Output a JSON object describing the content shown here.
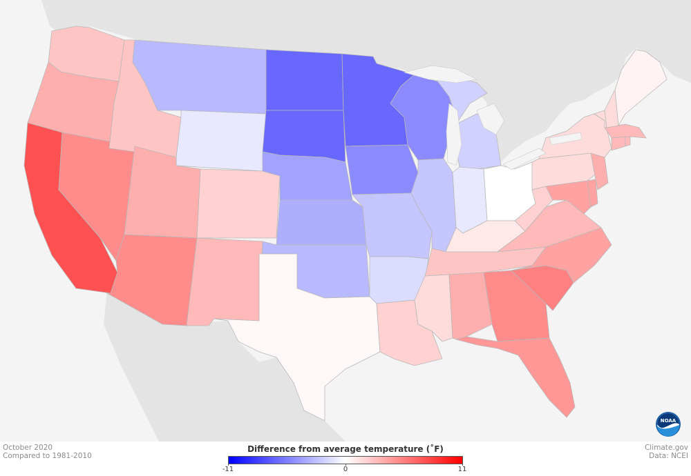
{
  "map": {
    "date_label": "October 2020",
    "baseline_label": "Compared to 1981-2010",
    "credit_source": "Climate.gov",
    "credit_data": "Data: NCEI",
    "logo_text": "NOAA",
    "colors": {
      "background": "#f4f4f4",
      "neighbor_land": "#e4e4e4",
      "cold": "#0000ff",
      "neutral": "#ffffff",
      "warm": "#ff0000"
    }
  },
  "legend": {
    "title": "Difference from average temperature (˚F)",
    "min_label": "-11",
    "mid_label": "0",
    "max_label": "11",
    "min": -11,
    "max": 11
  },
  "chart_data": {
    "type": "heatmap",
    "title": "Difference from average temperature (˚F)",
    "subtitle": "October 2020, compared to 1981-2010",
    "scale": {
      "min": -11,
      "max": 11,
      "colors": [
        "#0000ff",
        "#ffffff",
        "#ff0000"
      ]
    },
    "regions": [
      {
        "name": "WA",
        "anomaly": 2.5
      },
      {
        "name": "OR",
        "anomaly": 3.5
      },
      {
        "name": "CA",
        "anomaly": 7.5
      },
      {
        "name": "NV",
        "anomaly": 5
      },
      {
        "name": "ID",
        "anomaly": 2.5
      },
      {
        "name": "MT",
        "anomaly": -3
      },
      {
        "name": "WY",
        "anomaly": -1
      },
      {
        "name": "UT",
        "anomaly": 3.5
      },
      {
        "name": "AZ",
        "anomaly": 5
      },
      {
        "name": "CO",
        "anomaly": 2
      },
      {
        "name": "NM",
        "anomaly": 3
      },
      {
        "name": "ND",
        "anomaly": -6.5
      },
      {
        "name": "SD",
        "anomaly": -6.5
      },
      {
        "name": "NE",
        "anomaly": -4
      },
      {
        "name": "KS",
        "anomaly": -3.5
      },
      {
        "name": "OK",
        "anomaly": -3
      },
      {
        "name": "TX",
        "anomaly": 0.3
      },
      {
        "name": "MN",
        "anomaly": -6.5
      },
      {
        "name": "IA",
        "anomaly": -5
      },
      {
        "name": "MO",
        "anomaly": -2.5
      },
      {
        "name": "AR",
        "anomaly": -1.5
      },
      {
        "name": "LA",
        "anomaly": 2
      },
      {
        "name": "WI",
        "anomaly": -5
      },
      {
        "name": "IL",
        "anomaly": -2.5
      },
      {
        "name": "MI",
        "anomaly": -2
      },
      {
        "name": "IN",
        "anomaly": -1
      },
      {
        "name": "OH",
        "anomaly": 0
      },
      {
        "name": "KY",
        "anomaly": 1
      },
      {
        "name": "TN",
        "anomaly": 2.5
      },
      {
        "name": "MS",
        "anomaly": 1.5
      },
      {
        "name": "AL",
        "anomaly": 3.5
      },
      {
        "name": "GA",
        "anomaly": 5
      },
      {
        "name": "FL",
        "anomaly": 4.5
      },
      {
        "name": "SC",
        "anomaly": 5.5
      },
      {
        "name": "NC",
        "anomaly": 4
      },
      {
        "name": "VA",
        "anomaly": 3
      },
      {
        "name": "WV",
        "anomaly": 2
      },
      {
        "name": "MD",
        "anomaly": 4
      },
      {
        "name": "DE",
        "anomaly": 4
      },
      {
        "name": "PA",
        "anomaly": 1.5
      },
      {
        "name": "NJ",
        "anomaly": 3.5
      },
      {
        "name": "NY",
        "anomaly": 1.5
      },
      {
        "name": "CT",
        "anomaly": 3
      },
      {
        "name": "RI",
        "anomaly": 3
      },
      {
        "name": "MA",
        "anomaly": 3
      },
      {
        "name": "VT",
        "anomaly": 1.5
      },
      {
        "name": "NH",
        "anomaly": 1.5
      },
      {
        "name": "ME",
        "anomaly": 0.5
      }
    ]
  }
}
